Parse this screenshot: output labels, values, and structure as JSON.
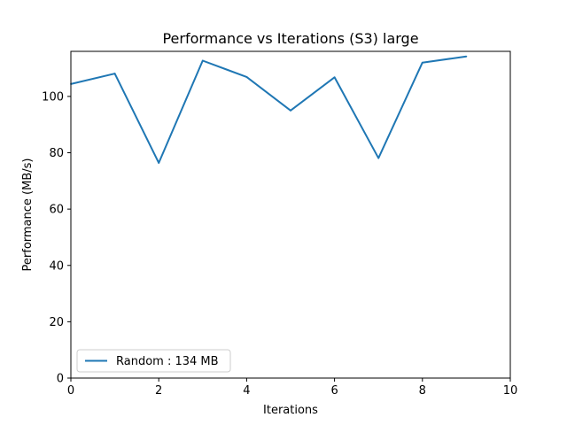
{
  "chart_data": {
    "type": "line",
    "title": "Performance vs Iterations (S3) large",
    "xlabel": "Iterations",
    "ylabel": "Performance (MB/s)",
    "xlim": [
      0,
      10
    ],
    "ylim": [
      0,
      116
    ],
    "xticks": [
      0,
      2,
      4,
      6,
      8,
      10
    ],
    "yticks": [
      0,
      20,
      40,
      60,
      80,
      100
    ],
    "grid": false,
    "legend_position": "lower-left",
    "series": [
      {
        "name": "Random : 134 MB",
        "color": "#1f77b4",
        "x": [
          0,
          1,
          2,
          3,
          4,
          5,
          6,
          7,
          8,
          9
        ],
        "y": [
          104.4,
          108.1,
          76.4,
          112.7,
          106.9,
          95.0,
          106.8,
          78.1,
          112.0,
          114.2
        ]
      }
    ]
  }
}
